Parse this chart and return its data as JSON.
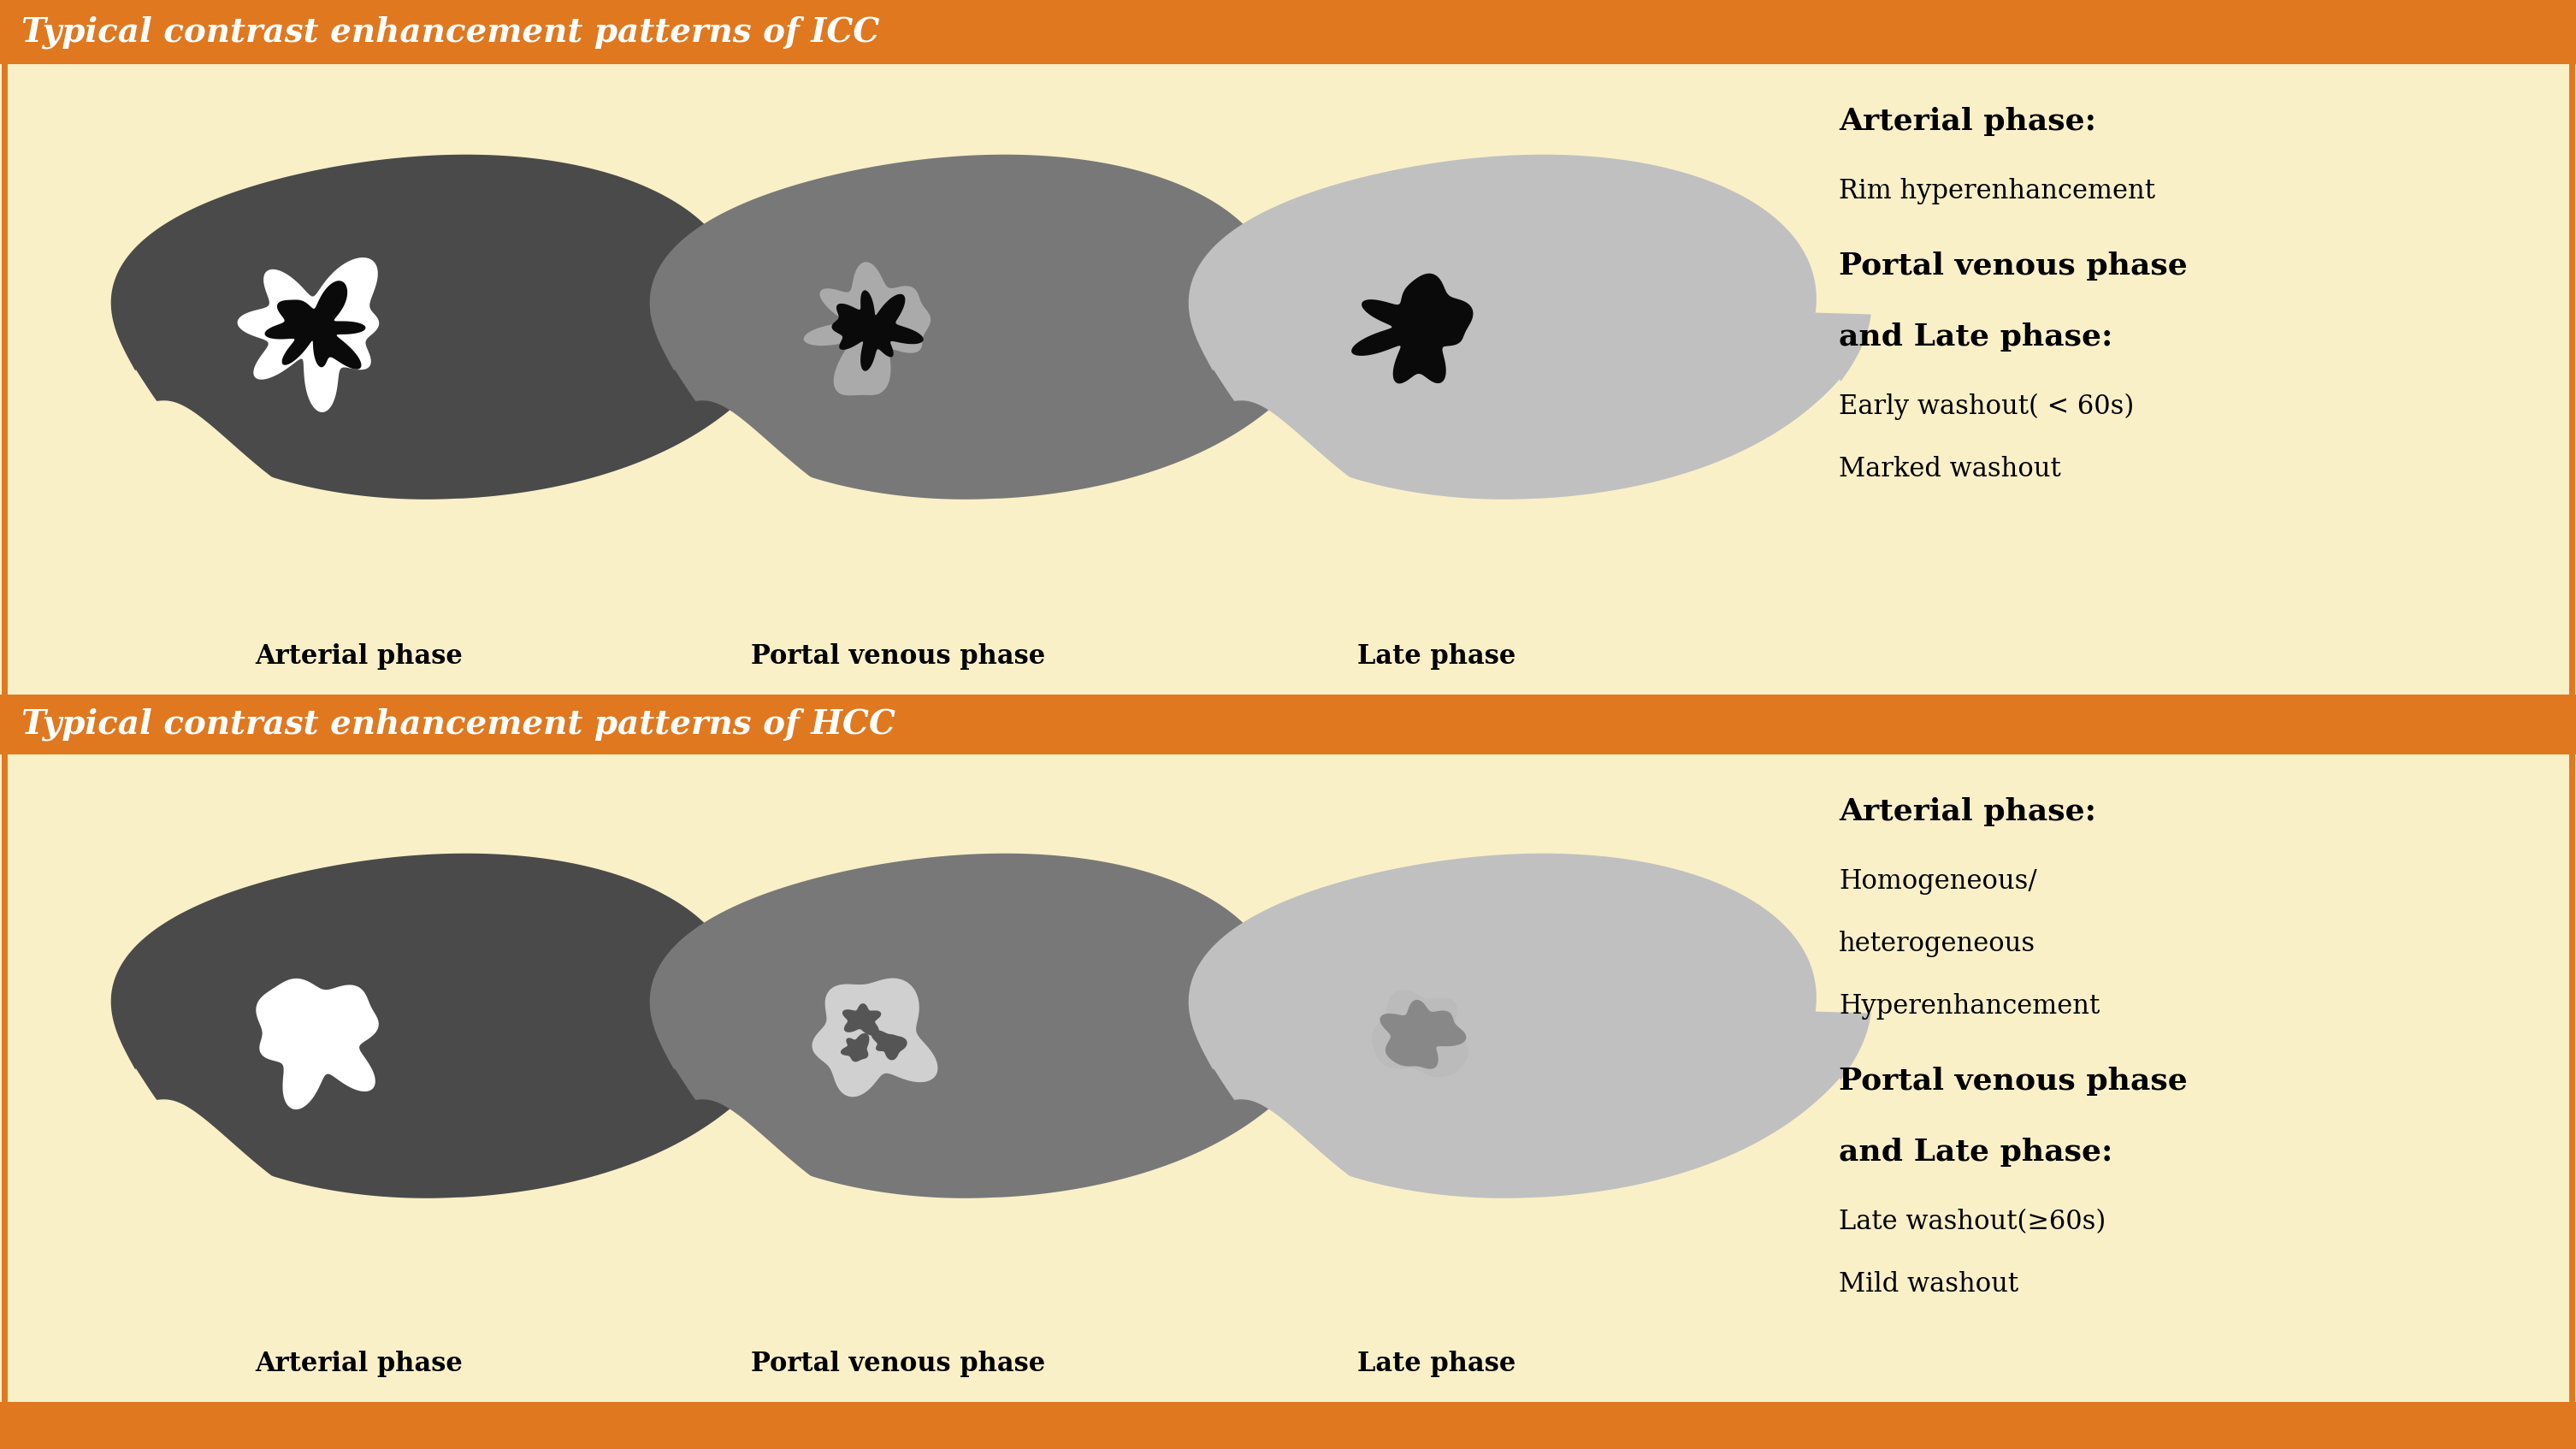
{
  "bg_color": "#FAF0C8",
  "orange_color": "#E07820",
  "dark_liver_color": "#4A4A4A",
  "medium_liver_color": "#787878",
  "light_liver_color": "#C0C0C0",
  "black_lesion": "#0A0A0A",
  "white_lesion": "#FFFFFF",
  "header_icc": "Typical contrast enhancement patterns of ICC",
  "header_hcc": "Typical contrast enhancement patterns of HCC",
  "label_arterial": "Arterial phase",
  "label_portal": "Portal venous phase",
  "label_late": "Late phase",
  "icc_desc_title1": "Arterial phase:",
  "icc_desc_line1": "Rim hyperenhancement",
  "icc_portal_title": "Portal venous phase",
  "icc_late_title": "and Late phase:",
  "icc_desc_line2": "Early washout( < 60s)",
  "icc_desc_line3": "Marked washout",
  "hcc_desc_title1": "Arterial phase:",
  "hcc_desc_line1": "Homogeneous/",
  "hcc_desc_line2": "heterogeneous",
  "hcc_desc_line3": "Hyperenhancement",
  "hcc_portal_title": "Portal venous phase",
  "hcc_late_title": "and Late phase:",
  "hcc_desc_line4": "Late washout(≥60s)",
  "hcc_desc_line5": "Mild washout",
  "header_fontsize": 28,
  "label_fontsize": 22,
  "desc_title_fontsize": 26,
  "desc_text_fontsize": 22
}
